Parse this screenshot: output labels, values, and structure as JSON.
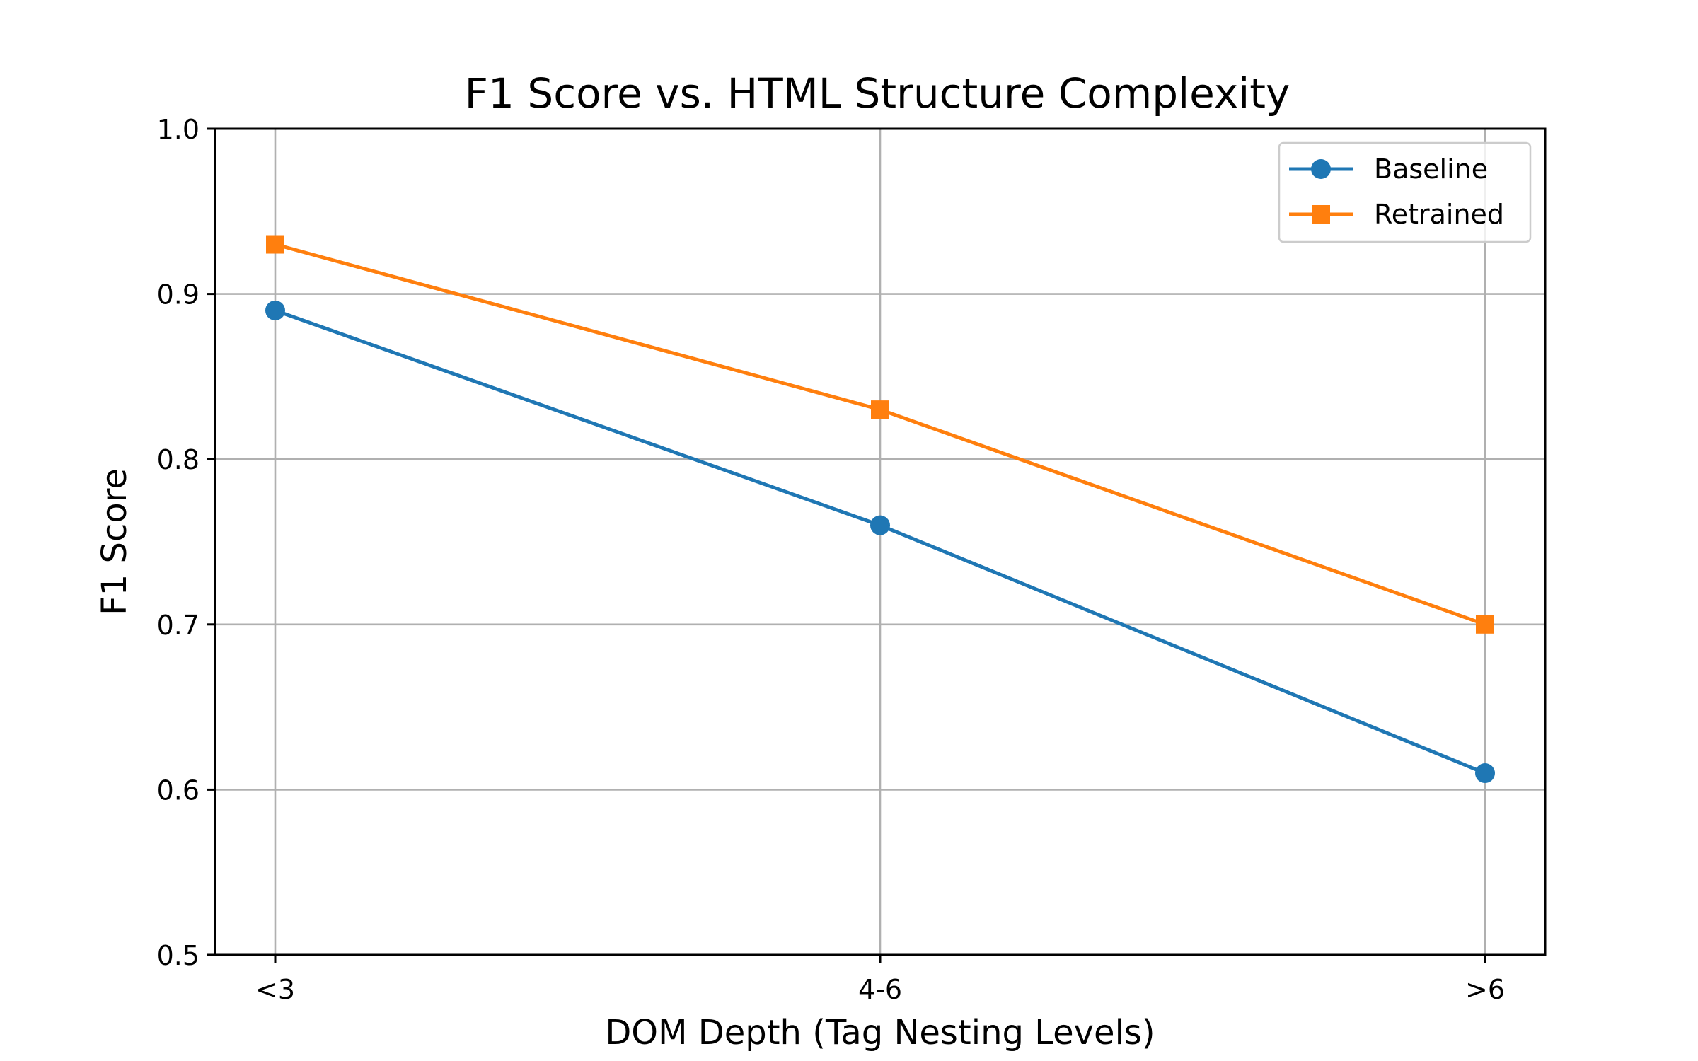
{
  "chart_data": {
    "type": "line",
    "title": "F1 Score vs. HTML Structure Complexity",
    "xlabel": "DOM Depth (Tag Nesting Levels)",
    "ylabel": "F1 Score",
    "categories": [
      "<3",
      "4-6",
      ">6"
    ],
    "ylim": [
      0.5,
      1.0
    ],
    "yticks": [
      "0.5",
      "0.6",
      "0.7",
      "0.8",
      "0.9",
      "1.0"
    ],
    "grid": true,
    "legend_position": "top-right",
    "series": [
      {
        "name": "Baseline",
        "values": [
          0.89,
          0.76,
          0.61
        ],
        "color": "#1f77b4",
        "marker": "circle"
      },
      {
        "name": "Retrained",
        "values": [
          0.93,
          0.83,
          0.7
        ],
        "color": "#ff7f0e",
        "marker": "square"
      }
    ]
  }
}
